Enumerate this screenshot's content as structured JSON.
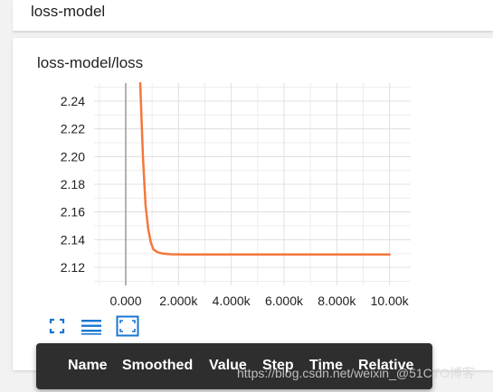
{
  "group": {
    "title": "loss-model"
  },
  "card": {
    "title": "loss-model/loss"
  },
  "chart_data": {
    "type": "line",
    "title": "loss-model/loss",
    "xlabel": "",
    "ylabel": "",
    "xlim": [
      -1200,
      10800
    ],
    "ylim": [
      2.107,
      2.253
    ],
    "x_ticks": [
      0,
      2000,
      4000,
      6000,
      8000,
      10000
    ],
    "x_tick_labels": [
      "0.000",
      "2.000k",
      "4.000k",
      "6.000k",
      "8.000k",
      "10.00k"
    ],
    "y_ticks": [
      2.12,
      2.14,
      2.16,
      2.18,
      2.2,
      2.22,
      2.24
    ],
    "y_tick_labels": [
      "2.12",
      "2.14",
      "2.16",
      "2.18",
      "2.20",
      "2.22",
      "2.24"
    ],
    "grid": true,
    "series": [
      {
        "color": "#f4783c",
        "x": [
          550,
          650,
          750,
          850,
          950,
          1050,
          1200,
          1400,
          1700,
          2200,
          3000,
          5000,
          7500,
          10000
        ],
        "y": [
          2.253,
          2.2,
          2.165,
          2.148,
          2.138,
          2.133,
          2.131,
          2.13,
          2.1295,
          2.1293,
          2.1293,
          2.1293,
          2.1293,
          2.1293
        ]
      }
    ]
  },
  "toolbar": {
    "items": [
      "fit-domain-icon",
      "toggle-y-log-icon",
      "fit-data-icon"
    ]
  },
  "tooltip": {
    "columns": [
      "Name",
      "Smoothed",
      "Value",
      "Step",
      "Time",
      "Relative"
    ]
  },
  "watermark": {
    "text": "https://blog.csdn.net/weixin_@51CTO博客"
  },
  "colors": {
    "line": "#f4783c",
    "grid": "#e0e0e0",
    "zero_axis": "#999999",
    "toolbar_icon": "#1976d2",
    "tooltip_bg": "#2e2e2e"
  }
}
